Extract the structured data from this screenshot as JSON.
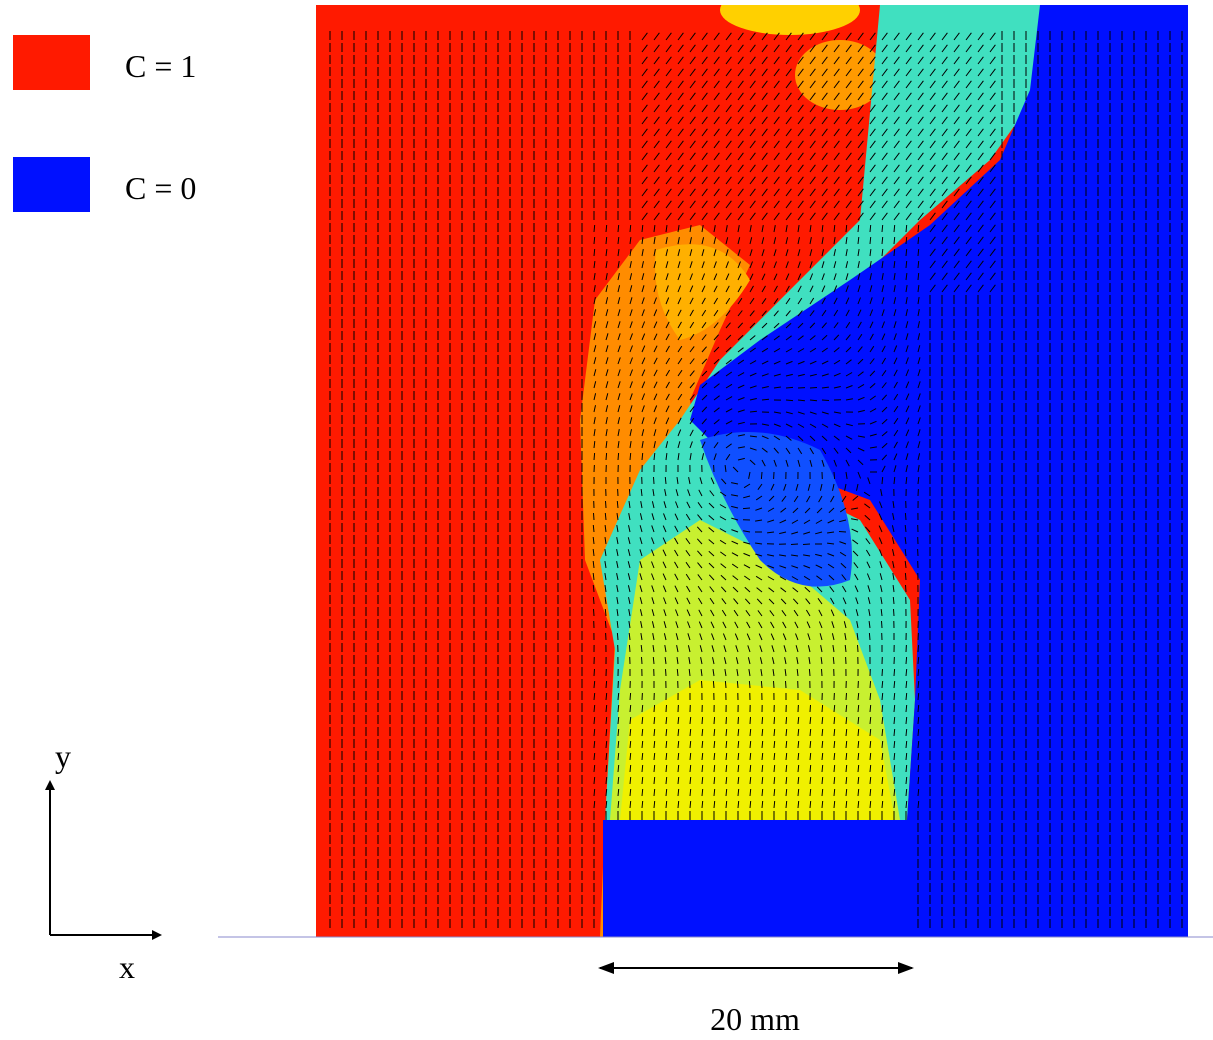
{
  "legend": [
    {
      "label": "C = 1",
      "color": "#ff1a00"
    },
    {
      "label": "C = 0",
      "color": "#0010ff"
    }
  ],
  "axes": {
    "y": "y",
    "x": "x"
  },
  "scale_bar": "20 mm"
}
